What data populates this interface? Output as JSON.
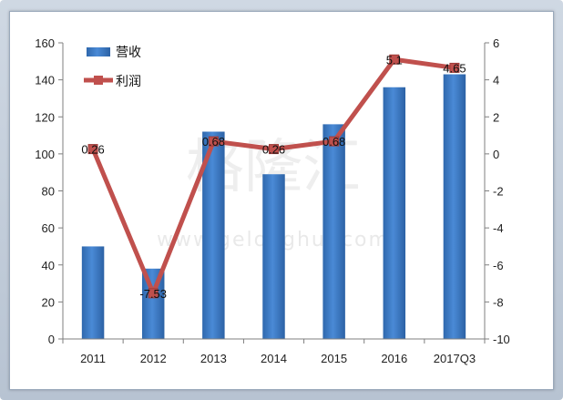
{
  "chart_data": {
    "type": "bar",
    "categories": [
      "2011",
      "2012",
      "2013",
      "2014",
      "2015",
      "2016",
      "2017Q3"
    ],
    "series": [
      {
        "name": "营收",
        "type": "bar",
        "axis": "left",
        "values": [
          50,
          38,
          112,
          89,
          116,
          136,
          143
        ]
      },
      {
        "name": "利润",
        "type": "line",
        "axis": "right",
        "values": [
          0.26,
          -7.53,
          0.68,
          0.26,
          0.68,
          5.1,
          4.65
        ],
        "data_labels": [
          "0.26",
          "-7.53",
          "0.68",
          "0.26",
          "0.68",
          "5.1",
          "4.65"
        ]
      }
    ],
    "y_left": {
      "min": 0,
      "max": 160,
      "ticks": [
        "0",
        "20",
        "40",
        "60",
        "80",
        "100",
        "120",
        "140",
        "160"
      ]
    },
    "y_right": {
      "min": -10,
      "max": 6,
      "ticks": [
        "-10",
        "-8",
        "-6",
        "-4",
        "-2",
        "0",
        "2",
        "4",
        "6"
      ]
    },
    "legend_position": "top-left",
    "grid": false,
    "colors": {
      "bar": "#3b78c2",
      "line": "#c0504d"
    }
  },
  "watermark": {
    "text": "格隆汇",
    "url": "www.gelonghui.com"
  }
}
